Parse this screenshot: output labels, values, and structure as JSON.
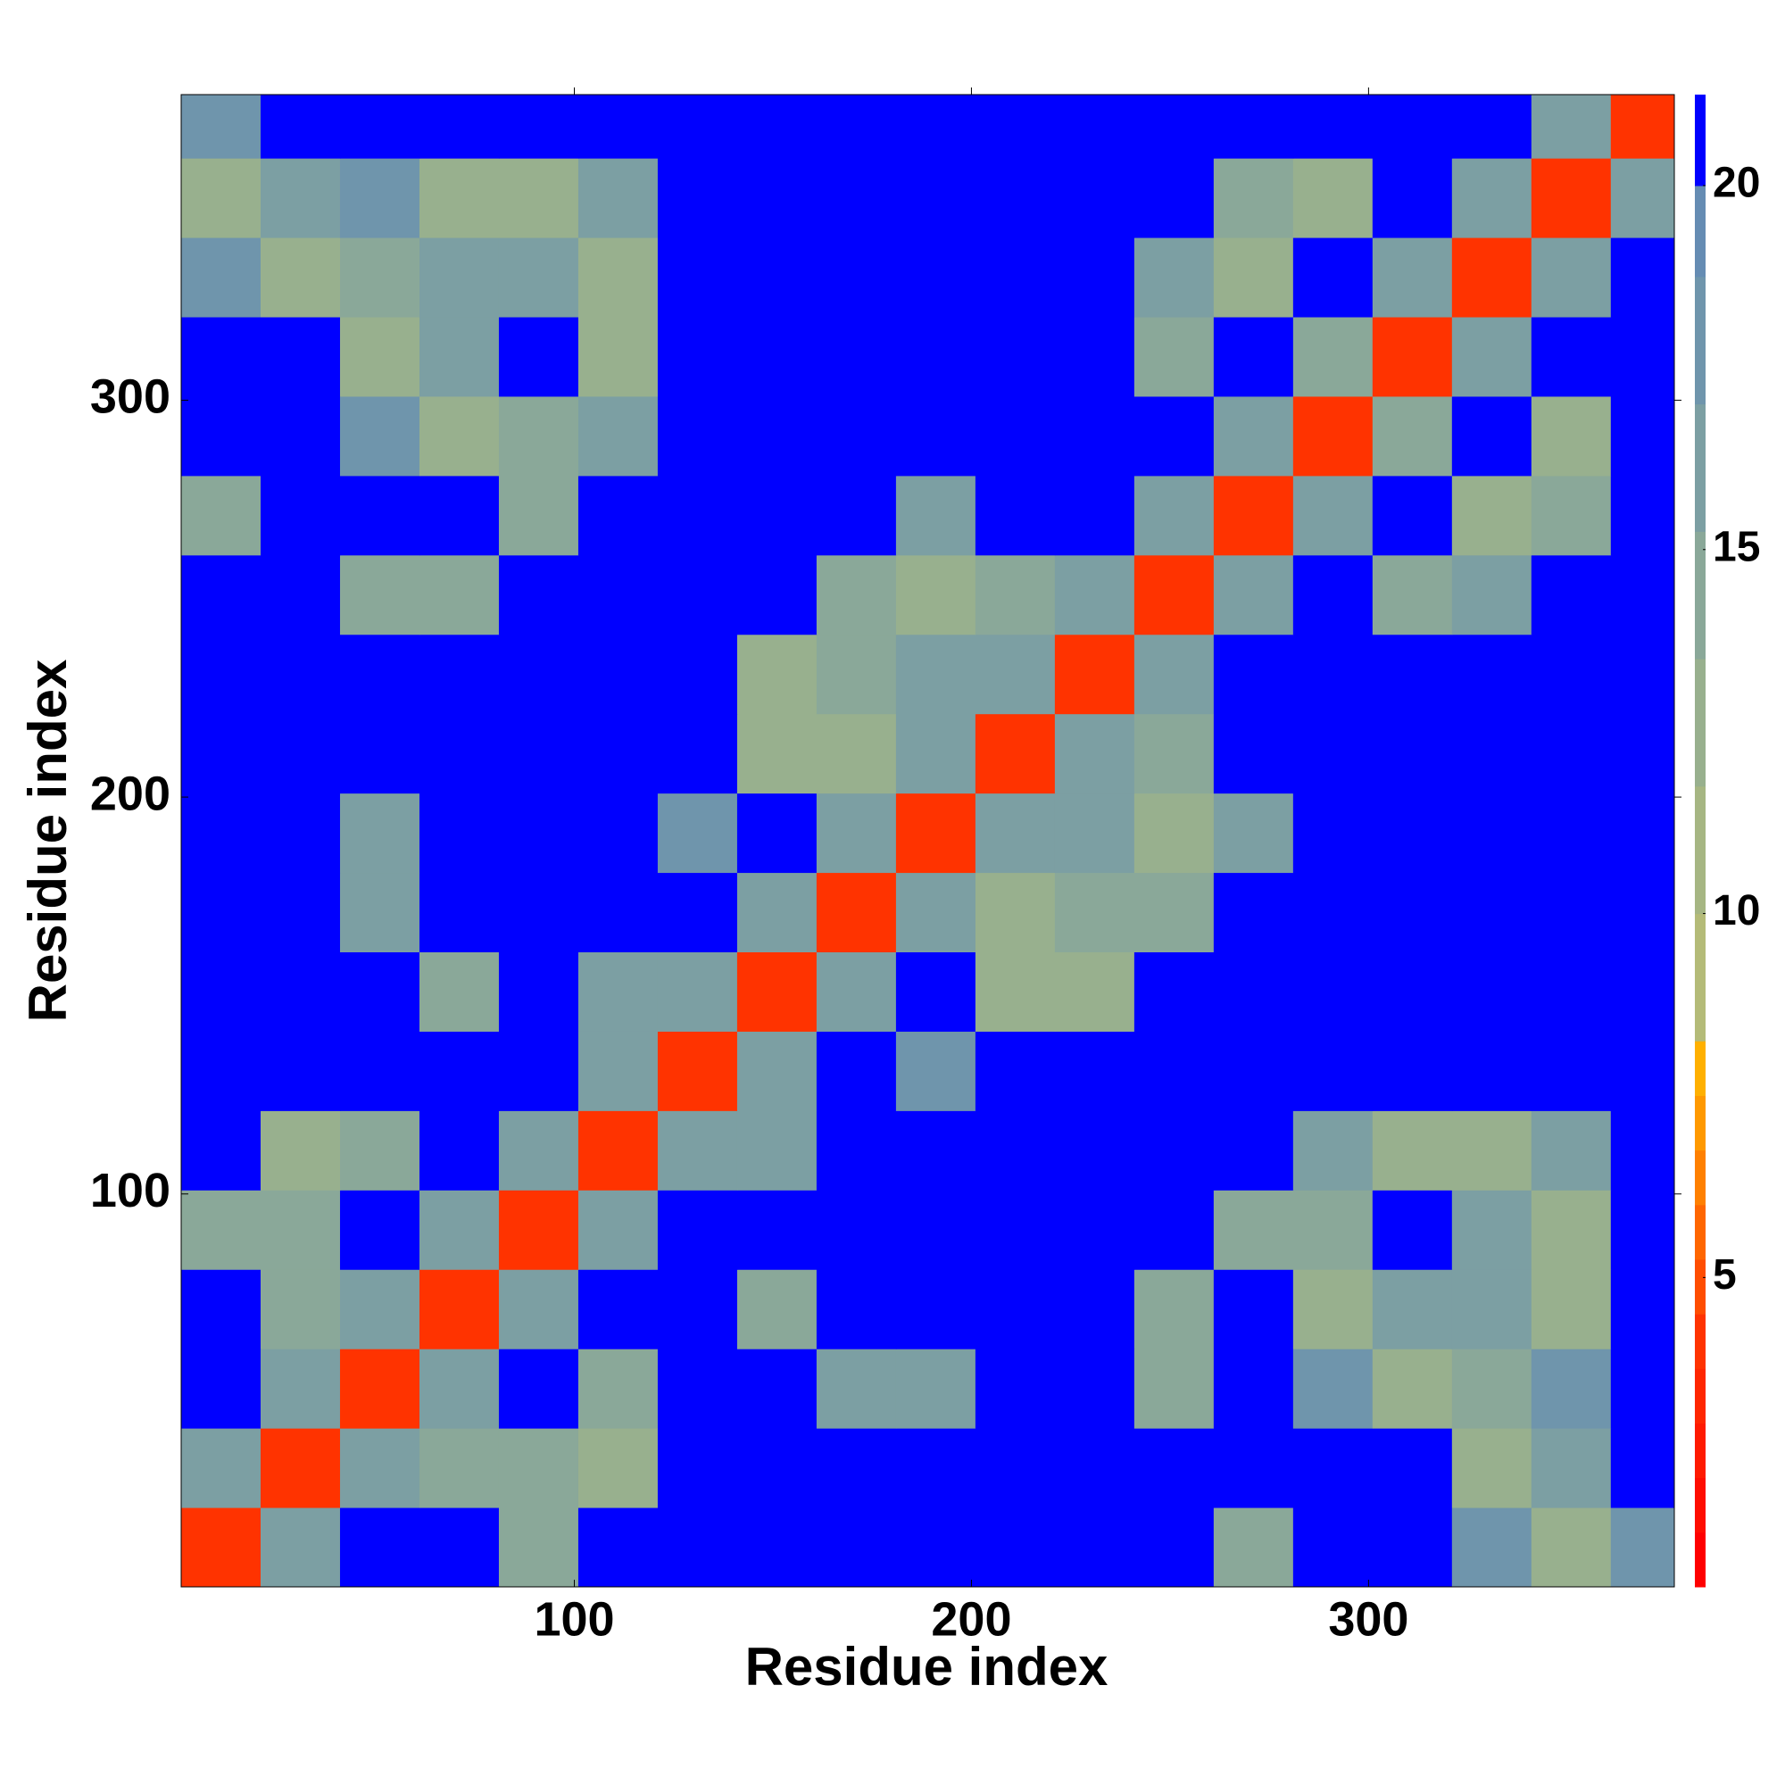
{
  "chart_data": {
    "type": "heatmap",
    "x_label": "Residue index",
    "y_label": "Residue index",
    "bins": [
      1,
      21,
      41,
      61,
      81,
      101,
      121,
      141,
      161,
      181,
      201,
      221,
      241,
      261,
      281,
      301,
      321,
      341,
      361,
      377
    ],
    "xlim": [
      1,
      377
    ],
    "ylim": [
      1,
      377
    ],
    "xticks": [
      100,
      200,
      300
    ],
    "yticks": [
      100,
      200,
      300
    ],
    "z": [
      [
        4,
        16,
        21,
        21,
        14,
        21,
        21,
        21,
        21,
        21,
        21,
        21,
        21,
        14,
        21,
        21,
        17,
        13,
        17
      ],
      [
        16,
        4,
        16,
        14,
        14,
        13,
        21,
        21,
        21,
        21,
        21,
        21,
        21,
        21,
        21,
        21,
        13,
        16,
        21
      ],
      [
        21,
        16,
        4,
        16,
        21,
        14,
        21,
        21,
        16,
        16,
        21,
        21,
        15,
        21,
        17,
        13,
        14,
        17,
        21
      ],
      [
        21,
        14,
        16,
        4,
        16,
        21,
        21,
        15,
        21,
        21,
        21,
        21,
        15,
        21,
        13,
        16,
        16,
        13,
        21
      ],
      [
        14,
        14,
        21,
        16,
        4,
        16,
        21,
        21,
        21,
        21,
        21,
        21,
        21,
        15,
        14,
        21,
        16,
        13,
        21
      ],
      [
        21,
        13,
        14,
        21,
        16,
        4,
        16,
        16,
        21,
        21,
        21,
        21,
        21,
        21,
        16,
        13,
        13,
        16,
        21
      ],
      [
        21,
        21,
        21,
        21,
        21,
        16,
        4,
        16,
        21,
        17,
        21,
        21,
        21,
        21,
        21,
        21,
        21,
        21,
        21
      ],
      [
        21,
        21,
        21,
        15,
        21,
        16,
        16,
        4,
        16,
        21,
        13,
        13,
        21,
        21,
        21,
        21,
        21,
        21,
        21
      ],
      [
        21,
        21,
        16,
        21,
        21,
        21,
        21,
        16,
        4,
        16,
        13,
        14,
        14,
        21,
        21,
        21,
        21,
        21,
        21
      ],
      [
        21,
        21,
        16,
        21,
        21,
        21,
        17,
        21,
        16,
        4,
        16,
        16,
        13,
        16,
        21,
        21,
        21,
        21,
        21
      ],
      [
        21,
        21,
        21,
        21,
        21,
        21,
        21,
        13,
        13,
        16,
        4,
        16,
        14,
        21,
        21,
        21,
        21,
        21,
        21
      ],
      [
        21,
        21,
        21,
        21,
        21,
        21,
        21,
        13,
        14,
        16,
        16,
        4,
        16,
        21,
        21,
        21,
        21,
        21,
        21
      ],
      [
        21,
        21,
        15,
        15,
        21,
        21,
        21,
        21,
        14,
        13,
        14,
        16,
        4,
        16,
        21,
        15,
        16,
        21,
        21
      ],
      [
        14,
        21,
        21,
        21,
        15,
        21,
        21,
        21,
        21,
        16,
        21,
        21,
        16,
        4,
        16,
        21,
        13,
        14,
        21
      ],
      [
        21,
        21,
        17,
        13,
        14,
        16,
        21,
        21,
        21,
        21,
        21,
        21,
        21,
        16,
        4,
        14,
        21,
        13,
        21
      ],
      [
        21,
        21,
        13,
        16,
        21,
        13,
        21,
        21,
        21,
        21,
        21,
        21,
        15,
        21,
        14,
        4,
        16,
        21,
        21
      ],
      [
        17,
        13,
        14,
        16,
        16,
        13,
        21,
        21,
        21,
        21,
        21,
        21,
        16,
        13,
        21,
        16,
        4,
        16,
        21
      ],
      [
        13,
        16,
        17,
        13,
        13,
        16,
        21,
        21,
        21,
        21,
        21,
        21,
        21,
        14,
        13,
        21,
        16,
        4,
        16
      ],
      [
        17,
        21,
        21,
        21,
        21,
        21,
        21,
        21,
        21,
        21,
        21,
        21,
        21,
        21,
        21,
        21,
        21,
        16,
        4
      ]
    ],
    "colorbar": {
      "lim": [
        0.75,
        21.25
      ],
      "ticks": [
        5,
        10,
        15,
        20
      ],
      "levels": [
        0.75,
        1.5,
        2.25,
        3,
        3.75,
        4.5,
        5.25,
        6,
        6.75,
        7.5,
        8.25,
        10,
        11.75,
        13.5,
        15.25,
        17,
        18.75,
        20,
        21.25
      ],
      "colors": [
        "#ff0000",
        "#ff0d00",
        "#ff1a00",
        "#ff2600",
        "#ff3300",
        "#ff4d00",
        "#ff6600",
        "#ff8000",
        "#ff9900",
        "#ffb000",
        "#b4bb78",
        "#a6b683",
        "#98b08e",
        "#8aa899",
        "#7c9fa3",
        "#6f95ac",
        "#658cb3",
        "#0000ff"
      ]
    }
  }
}
